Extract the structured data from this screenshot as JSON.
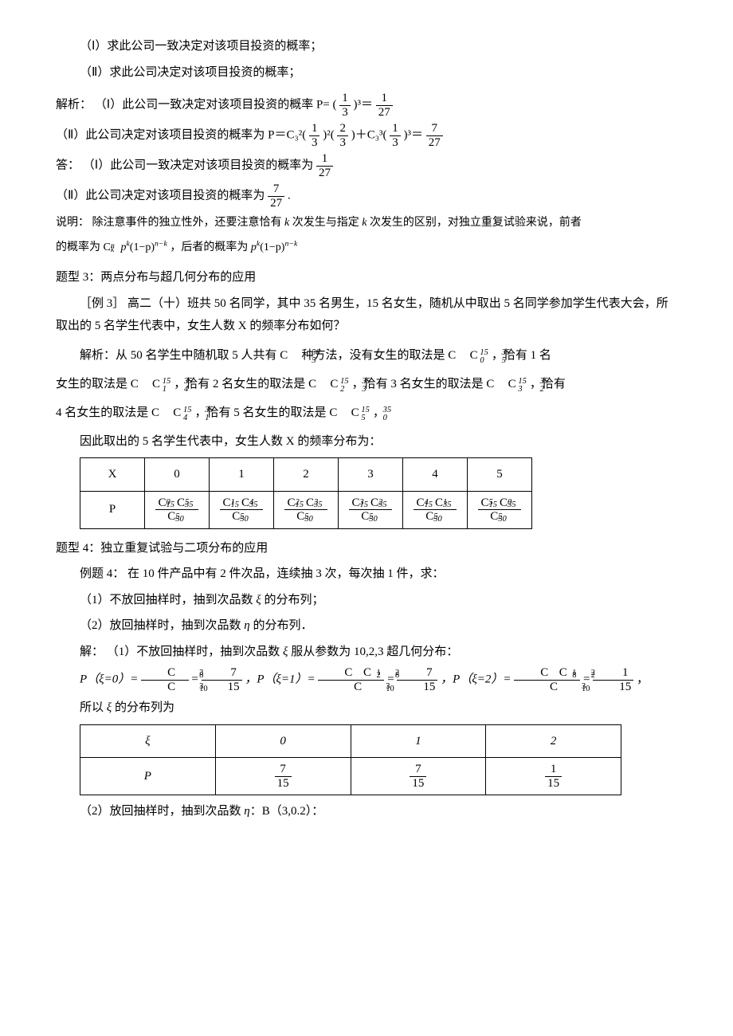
{
  "q1": "（Ⅰ）求此公司一致决定对该项目投资的概率；",
  "q2": "（Ⅱ）求此公司决定对该项目投资的概率；",
  "sol_label": "解析：",
  "sol1_pre": "（Ⅰ）此公司一致决定对该项目投资的概率 P= (",
  "one_third_n": "1",
  "one_third_d": "3",
  "cube": ")³＝",
  "one_27_n": "1",
  "one_27_d": "27",
  "sol2_pre": "（Ⅱ）此公司决定对该项目投资的概率为 P＝C₃²(",
  "two": "2",
  "three": "3",
  "sol2_mid1": ")²(",
  "sol2_mid2": ")＋C₃³(",
  "sol2_mid3": ")³＝",
  "seven_27_n": "7",
  "seven_27_d": "27",
  "ans_label": "答：",
  "ans1": "（Ⅰ）此公司一致决定对该项目投资的概率为",
  "ans2_pre": "（Ⅱ）此公司决定对该项目投资的概率为",
  "ans2_post": ".",
  "note_label": "说明：",
  "note_text1": "除注意事件的独立性外，还要注意恰有",
  "note_text2": "次发生与指定",
  "note_text3": "次发生的区别，对独立重复试验来说，前者",
  "note_text4": "的概率为",
  "note_text5": "，后者的概率为",
  "k": "k",
  "formula1_a": "C",
  "formula1_b": "n",
  "formula1_c": "k",
  "formula1_d": "p",
  "formula1_e": "(1−p)",
  "formula1_f": "n−k",
  "type3_title": "题型 3：两点分布与超几何分布的应用",
  "ex3_label": "［例 3］",
  "ex3_text": "高二（十）班共 50 名同学，其中 35 名男生，15 名女生，随机从中取出 5 名同学参加学生代表大会，所取出的 5 名学生代表中，女生人数 X 的频率分布如何？",
  "ex3_sol_pre": "解析：从 50 名学生中随机取 5 人共有",
  "ex3_sol_1": "种方法，没有女生的取法是",
  "ex3_sol_2": "，恰有 1 名",
  "ex3_sol_3": "女生的取法是",
  "ex3_sol_4": "，恰有 2 名女生的取法是",
  "ex3_sol_5": "，恰有 3 名女生的取法是",
  "ex3_sol_6": "，恰有",
  "ex3_sol_7": "4 名女生的取法是",
  "ex3_sol_8": "，恰有 5 名女生的取法是",
  "ex3_sol_9": "，",
  "ex3_conc": "因此取出的 5 名学生代表中，女生人数 X 的频率分布为：",
  "t1": {
    "h": [
      "X",
      "0",
      "1",
      "2",
      "3",
      "4",
      "5"
    ],
    "r": "P",
    "cells": [
      {
        "a": "0",
        "b": "5"
      },
      {
        "a": "1",
        "b": "4"
      },
      {
        "a": "2",
        "b": "3"
      },
      {
        "a": "3",
        "b": "2"
      },
      {
        "a": "4",
        "b": "1"
      },
      {
        "a": "5",
        "b": "0"
      }
    ]
  },
  "type4_title": "题型 4：独立重复试验与二项分布的应用",
  "ex4_label": "例题 4：",
  "ex4_text": "在 10 件产品中有 2 件次品，连续抽 3 次，每次抽 1 件，求：",
  "ex4_q1": "（1）不放回抽样时，抽到次品数 ",
  "ex4_q1b": " 的分布列；",
  "ex4_q2": "（2）放回抽样时，抽到次品数 ",
  "ex4_q2b": " 的分布列．",
  "xi": "ξ",
  "eta": "η",
  "ex4_sol_label": "解：",
  "ex4_sol1": "（1）不放回抽样时，抽到次品数 ",
  "ex4_sol1b": " 服从参数为 10,2,3 超几何分布：",
  "p0_lhs": "P（ξ=0）=",
  "p1_lhs": "，P（ξ=1）=",
  "p2_lhs": "，P（ξ=2）=",
  "eq": "=",
  "comma": "，",
  "p0v_n": "7",
  "p0v_d": "15",
  "p1v_n": "7",
  "p1v_d": "15",
  "p2v_n": "1",
  "p2v_d": "15",
  "so": "所以 ",
  "so2": " 的分布列为",
  "t2": {
    "h": [
      "ξ",
      "0",
      "1",
      "2"
    ],
    "r": "P",
    "v": [
      {
        "n": "7",
        "d": "15"
      },
      {
        "n": "7",
        "d": "15"
      },
      {
        "n": "1",
        "d": "15"
      }
    ]
  },
  "ex4_sol2": "（2）放回抽样时，抽到次品数 ",
  "ex4_sol2b": "：B（3,0.2）："
}
